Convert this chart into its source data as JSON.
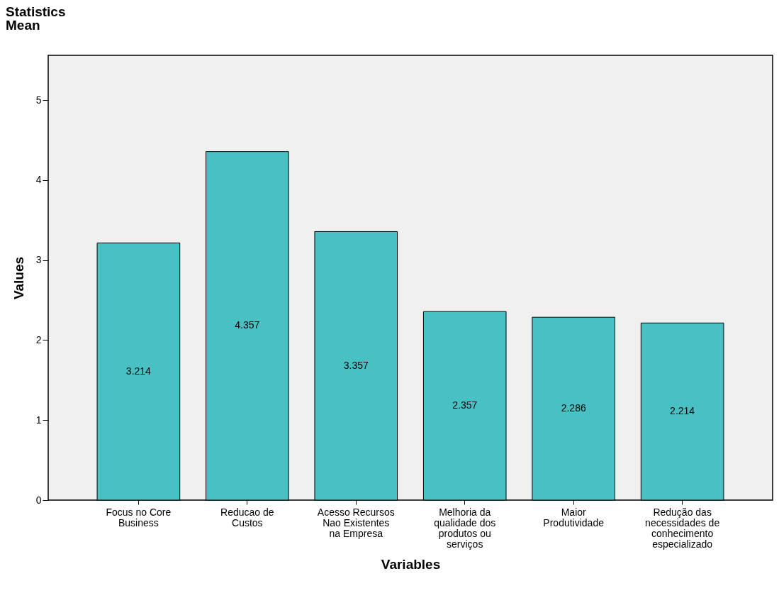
{
  "chart_data": {
    "type": "bar",
    "title": "Statistics",
    "subtitle": "Mean",
    "xlabel": "Variables",
    "ylabel": "Values",
    "categories": [
      "Focus no Core Business",
      "Reducao de Custos",
      "Acesso Recursos Nao Existentes na Empresa",
      "Melhoria da qualidade dos produtos ou serviços",
      "Maior Produtividade",
      "Redução das necessidades de conhecimento especializado"
    ],
    "values": [
      3.214,
      4.357,
      3.357,
      2.357,
      2.286,
      2.214
    ],
    "color": "#48c0c4",
    "ylim": [
      0,
      5.56
    ],
    "yticks": [
      0,
      1,
      2,
      3,
      4,
      5
    ],
    "grid": false,
    "data_labels": true
  }
}
